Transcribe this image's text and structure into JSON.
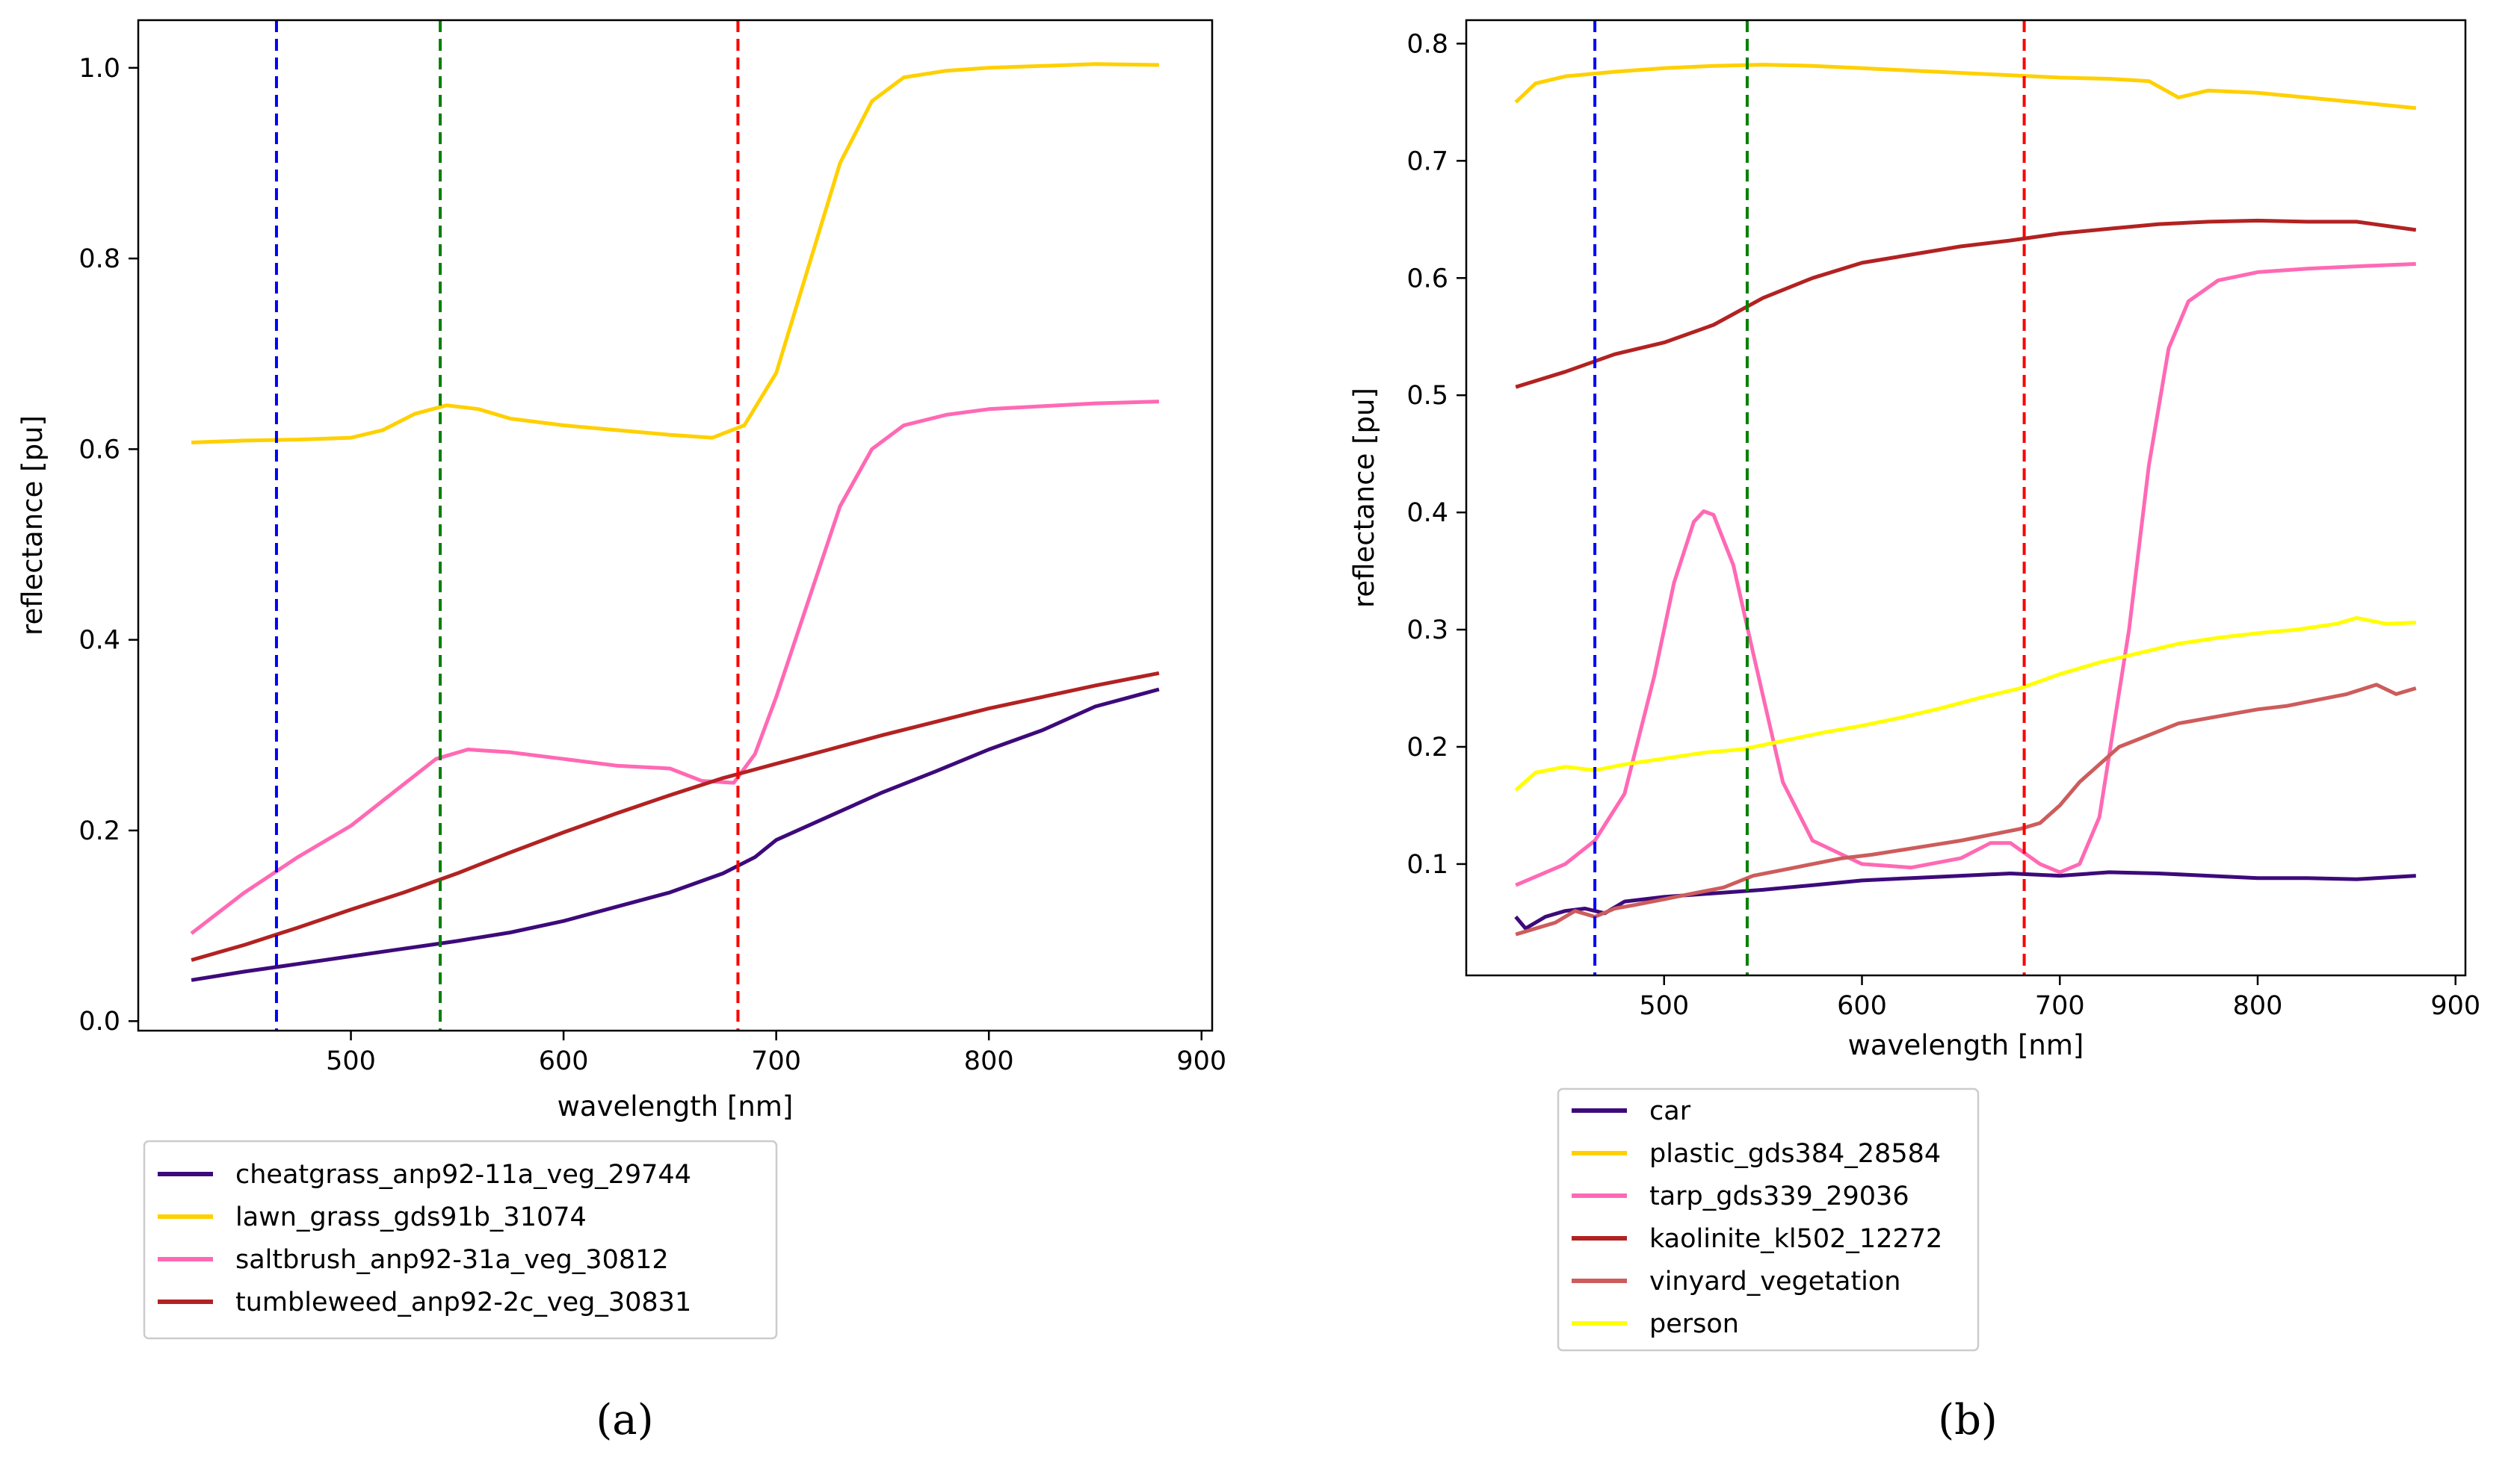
{
  "figure": {
    "captions": [
      "(a)",
      "(b)"
    ]
  },
  "chart_data": [
    {
      "type": "line",
      "panel": "a",
      "xlabel": "wavelength [nm]",
      "ylabel": "reflectance [pu]",
      "xlim": [
        400,
        905
      ],
      "ylim": [
        -0.01,
        1.05
      ],
      "xticks": [
        500,
        600,
        700,
        800,
        900
      ],
      "yticks": [
        0.0,
        0.2,
        0.4,
        0.6,
        0.8,
        1.0
      ],
      "ytick_labels": [
        "0.0",
        "0.2",
        "0.4",
        "0.6",
        "0.8",
        "1.0"
      ],
      "grid": false,
      "legend_position": "below",
      "vlines": [
        {
          "x": 465,
          "color": "#0000ff",
          "style": "dashed"
        },
        {
          "x": 542,
          "color": "#008000",
          "style": "dashed"
        },
        {
          "x": 682,
          "color": "#ff0000",
          "style": "dashed"
        }
      ],
      "series": [
        {
          "name": "cheatgrass_anp92-11a_veg_29744",
          "color": "#3d0a7a",
          "x": [
            425,
            450,
            475,
            500,
            525,
            550,
            575,
            600,
            625,
            650,
            675,
            690,
            700,
            725,
            750,
            775,
            800,
            825,
            850,
            880
          ],
          "y": [
            0.043,
            0.052,
            0.06,
            0.068,
            0.076,
            0.084,
            0.093,
            0.105,
            0.12,
            0.135,
            0.155,
            0.172,
            0.19,
            0.215,
            0.24,
            0.262,
            0.285,
            0.305,
            0.33,
            0.348
          ]
        },
        {
          "name": "lawn_grass_gds91b_31074",
          "color": "#ffd000",
          "x": [
            425,
            450,
            475,
            500,
            515,
            530,
            545,
            560,
            575,
            600,
            625,
            650,
            670,
            685,
            700,
            715,
            730,
            745,
            760,
            780,
            800,
            825,
            850,
            880
          ],
          "y": [
            0.607,
            0.609,
            0.61,
            0.612,
            0.62,
            0.637,
            0.646,
            0.642,
            0.632,
            0.625,
            0.62,
            0.615,
            0.612,
            0.625,
            0.68,
            0.79,
            0.9,
            0.965,
            0.99,
            0.997,
            1.0,
            1.002,
            1.004,
            1.003
          ]
        },
        {
          "name": "saltbrush_anp92-31a_veg_30812",
          "color": "#ff69b4",
          "x": [
            425,
            450,
            475,
            500,
            520,
            540,
            555,
            575,
            600,
            625,
            650,
            665,
            680,
            690,
            700,
            715,
            730,
            745,
            760,
            780,
            800,
            825,
            850,
            880
          ],
          "y": [
            0.092,
            0.135,
            0.172,
            0.205,
            0.24,
            0.275,
            0.285,
            0.282,
            0.275,
            0.268,
            0.265,
            0.252,
            0.25,
            0.28,
            0.34,
            0.44,
            0.54,
            0.6,
            0.625,
            0.636,
            0.642,
            0.645,
            0.648,
            0.65
          ]
        },
        {
          "name": "tumbleweed_anp92-2c_veg_30831",
          "color": "#b22222",
          "x": [
            425,
            450,
            475,
            500,
            525,
            550,
            575,
            600,
            625,
            650,
            675,
            700,
            725,
            750,
            775,
            800,
            825,
            850,
            880
          ],
          "y": [
            0.064,
            0.08,
            0.098,
            0.117,
            0.135,
            0.155,
            0.177,
            0.198,
            0.218,
            0.237,
            0.255,
            0.27,
            0.285,
            0.3,
            0.314,
            0.328,
            0.34,
            0.352,
            0.365
          ]
        }
      ]
    },
    {
      "type": "line",
      "panel": "b",
      "xlabel": "wavelength [nm]",
      "ylabel": "reflectance [pu]",
      "xlim": [
        400,
        905
      ],
      "ylim": [
        0.005,
        0.82
      ],
      "xticks": [
        500,
        600,
        700,
        800,
        900
      ],
      "yticks": [
        0.1,
        0.2,
        0.3,
        0.4,
        0.5,
        0.6,
        0.7,
        0.8
      ],
      "ytick_labels": [
        "0.1",
        "0.2",
        "0.3",
        "0.4",
        "0.5",
        "0.6",
        "0.7",
        "0.8"
      ],
      "grid": false,
      "legend_position": "below",
      "vlines": [
        {
          "x": 465,
          "color": "#0000ff",
          "style": "dashed"
        },
        {
          "x": 542,
          "color": "#008000",
          "style": "dashed"
        },
        {
          "x": 682,
          "color": "#ff0000",
          "style": "dashed"
        }
      ],
      "series": [
        {
          "name": "car",
          "color": "#3d0a7a",
          "x": [
            425,
            430,
            440,
            450,
            460,
            470,
            480,
            500,
            525,
            550,
            575,
            600,
            625,
            650,
            675,
            700,
            725,
            750,
            775,
            800,
            825,
            850,
            880
          ],
          "y": [
            0.055,
            0.045,
            0.055,
            0.06,
            0.062,
            0.058,
            0.068,
            0.072,
            0.075,
            0.078,
            0.082,
            0.086,
            0.088,
            0.09,
            0.092,
            0.09,
            0.093,
            0.092,
            0.09,
            0.088,
            0.088,
            0.087,
            0.09
          ]
        },
        {
          "name": "plastic_gds384_28584",
          "color": "#ffd000",
          "x": [
            425,
            435,
            450,
            475,
            500,
            525,
            550,
            575,
            600,
            625,
            650,
            675,
            700,
            725,
            745,
            760,
            775,
            800,
            825,
            850,
            880
          ],
          "y": [
            0.75,
            0.766,
            0.772,
            0.776,
            0.779,
            0.781,
            0.782,
            0.781,
            0.779,
            0.777,
            0.775,
            0.773,
            0.771,
            0.77,
            0.768,
            0.754,
            0.76,
            0.758,
            0.754,
            0.75,
            0.745
          ]
        },
        {
          "name": "tarp_gds339_29036",
          "color": "#ff69b4",
          "x": [
            425,
            450,
            465,
            480,
            495,
            505,
            515,
            520,
            525,
            535,
            545,
            560,
            575,
            600,
            625,
            650,
            665,
            675,
            690,
            700,
            710,
            720,
            735,
            745,
            755,
            765,
            780,
            800,
            825,
            850,
            880
          ],
          "y": [
            0.082,
            0.1,
            0.12,
            0.16,
            0.26,
            0.34,
            0.392,
            0.401,
            0.398,
            0.355,
            0.28,
            0.17,
            0.12,
            0.1,
            0.097,
            0.105,
            0.118,
            0.118,
            0.1,
            0.093,
            0.1,
            0.14,
            0.3,
            0.44,
            0.54,
            0.58,
            0.598,
            0.605,
            0.608,
            0.61,
            0.612
          ]
        },
        {
          "name": "kaolinite_kl502_12272",
          "color": "#b22222",
          "x": [
            425,
            450,
            475,
            500,
            525,
            550,
            575,
            600,
            625,
            650,
            675,
            700,
            725,
            750,
            775,
            800,
            825,
            850,
            880
          ],
          "y": [
            0.507,
            0.52,
            0.535,
            0.545,
            0.56,
            0.583,
            0.6,
            0.613,
            0.62,
            0.627,
            0.632,
            0.638,
            0.642,
            0.646,
            0.648,
            0.649,
            0.648,
            0.648,
            0.641
          ]
        },
        {
          "name": "vinyard_vegetation",
          "color": "#cd5c5c",
          "x": [
            425,
            435,
            445,
            455,
            465,
            475,
            485,
            500,
            515,
            530,
            545,
            560,
            575,
            590,
            605,
            620,
            635,
            650,
            665,
            680,
            690,
            700,
            710,
            720,
            730,
            745,
            760,
            780,
            800,
            815,
            830,
            845,
            860,
            870,
            880
          ],
          "y": [
            0.04,
            0.045,
            0.05,
            0.06,
            0.055,
            0.062,
            0.065,
            0.07,
            0.075,
            0.08,
            0.09,
            0.095,
            0.1,
            0.105,
            0.108,
            0.112,
            0.116,
            0.12,
            0.125,
            0.13,
            0.135,
            0.15,
            0.17,
            0.185,
            0.2,
            0.21,
            0.22,
            0.226,
            0.232,
            0.235,
            0.24,
            0.245,
            0.253,
            0.245,
            0.25
          ]
        },
        {
          "name": "person",
          "color": "#ffff00",
          "x": [
            425,
            435,
            450,
            465,
            480,
            500,
            520,
            540,
            560,
            580,
            600,
            620,
            640,
            660,
            680,
            700,
            720,
            740,
            760,
            780,
            800,
            820,
            840,
            850,
            865,
            880
          ],
          "y": [
            0.163,
            0.178,
            0.183,
            0.18,
            0.185,
            0.19,
            0.195,
            0.198,
            0.205,
            0.212,
            0.218,
            0.225,
            0.233,
            0.242,
            0.25,
            0.262,
            0.272,
            0.28,
            0.288,
            0.293,
            0.297,
            0.3,
            0.305,
            0.31,
            0.305,
            0.306
          ]
        }
      ]
    }
  ]
}
